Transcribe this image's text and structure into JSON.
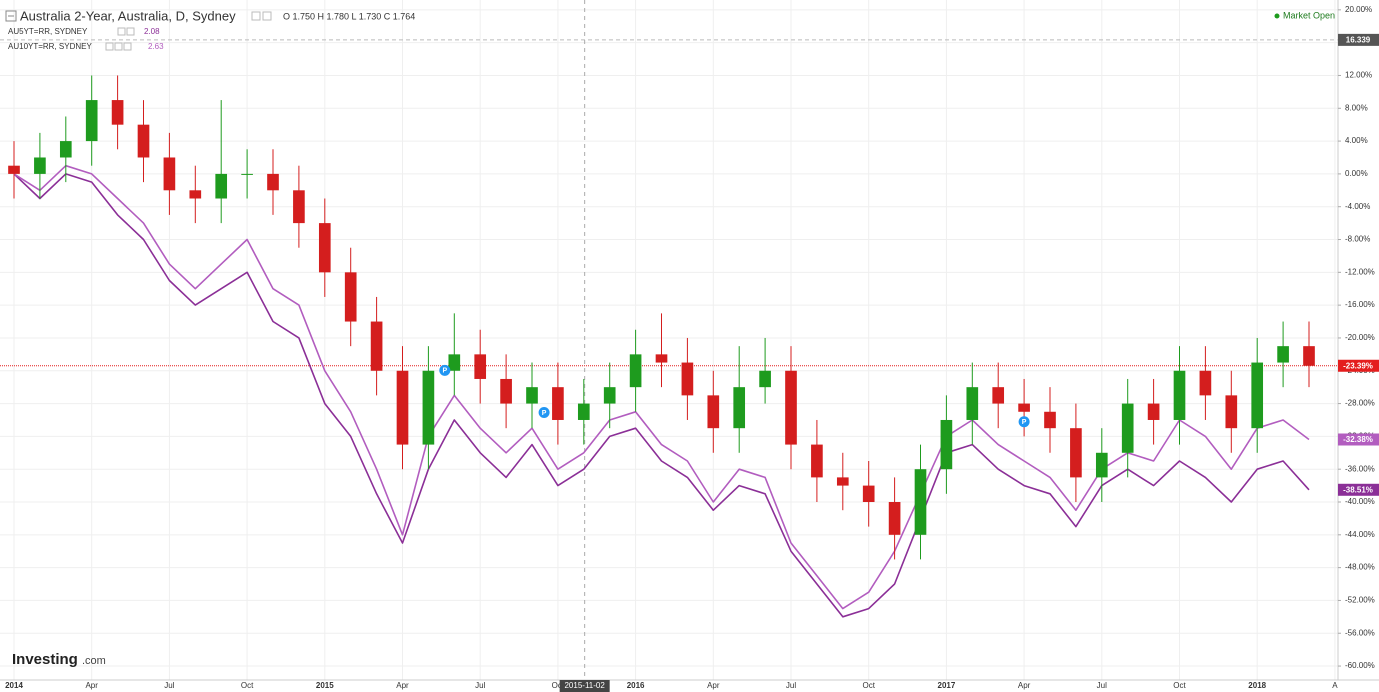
{
  "chart_data": {
    "type": "candlestick",
    "title": "Australia 2-Year, Australia, D, Sydney",
    "legend_ohlc": "O 1.750 H 1.780 L 1.730 C 1.764",
    "status": "Market Open",
    "watermark": [
      "Investing",
      ".com"
    ],
    "x": [
      "2014-01",
      "2014-02",
      "2014-03",
      "2014-04",
      "2014-05",
      "2014-06",
      "2014-07",
      "2014-08",
      "2014-09",
      "2014-10",
      "2014-11",
      "2014-12",
      "2015-01",
      "2015-02",
      "2015-03",
      "2015-04",
      "2015-05",
      "2015-06",
      "2015-07",
      "2015-08",
      "2015-09",
      "2015-10",
      "2015-11",
      "2015-12",
      "2016-01",
      "2016-02",
      "2016-03",
      "2016-04",
      "2016-05",
      "2016-06",
      "2016-07",
      "2016-08",
      "2016-09",
      "2016-10",
      "2016-11",
      "2016-12",
      "2017-01",
      "2017-02",
      "2017-03",
      "2017-04",
      "2017-05",
      "2017-06",
      "2017-07",
      "2017-08",
      "2017-09",
      "2017-10",
      "2017-11",
      "2017-12",
      "2018-01",
      "2018-02",
      "2018-03"
    ],
    "open": [
      1,
      0,
      2,
      4,
      9,
      6,
      2,
      -2,
      -3,
      0,
      0,
      -2,
      -6,
      -12,
      -18,
      -24,
      -33,
      -24,
      -22,
      -25,
      -28,
      -26,
      -30,
      -28,
      -26,
      -22,
      -23,
      -27,
      -31,
      -26,
      -24,
      -33,
      -37,
      -38,
      -40,
      -44,
      -36,
      -30,
      -26,
      -28,
      -29,
      -31,
      -37,
      -34,
      -28,
      -30,
      -24,
      -27,
      -31,
      -23,
      -21
    ],
    "high": [
      4,
      5,
      7,
      12,
      12,
      9,
      5,
      1,
      9,
      3,
      3,
      1,
      -3,
      -9,
      -15,
      -21,
      -21,
      -17,
      -19,
      -22,
      -23,
      -23,
      -25,
      -23,
      -19,
      -17,
      -20,
      -24,
      -21,
      -20,
      -21,
      -30,
      -34,
      -35,
      -37,
      -33,
      -27,
      -23,
      -23,
      -25,
      -26,
      -28,
      -31,
      -25,
      -25,
      -21,
      -21,
      -24,
      -20,
      -18,
      -18
    ],
    "low": [
      -3,
      -3,
      -1,
      1,
      3,
      -1,
      -5,
      -6,
      -6,
      -3,
      -5,
      -9,
      -15,
      -21,
      -27,
      -36,
      -36,
      -27,
      -28,
      -31,
      -31,
      -33,
      -33,
      -31,
      -29,
      -26,
      -30,
      -34,
      -34,
      -28,
      -36,
      -40,
      -41,
      -43,
      -47,
      -47,
      -39,
      -33,
      -31,
      -32,
      -34,
      -40,
      -40,
      -37,
      -33,
      -33,
      -30,
      -34,
      -34,
      -26,
      -26
    ],
    "close": [
      0,
      2,
      4,
      9,
      6,
      2,
      -2,
      -3,
      0,
      0,
      -2,
      -6,
      -12,
      -18,
      -24,
      -33,
      -24,
      -22,
      -25,
      -28,
      -26,
      -30,
      -28,
      -26,
      -22,
      -23,
      -27,
      -31,
      -26,
      -24,
      -33,
      -37,
      -38,
      -40,
      -44,
      -36,
      -30,
      -26,
      -28,
      -29,
      -31,
      -37,
      -34,
      -28,
      -30,
      -24,
      -27,
      -31,
      -23,
      -21,
      -23.39
    ],
    "up_color": "#1e9b1e",
    "down_color": "#d41e1e",
    "current": {
      "value": -23.39,
      "label": "-23.39%",
      "color": "#e41d1d"
    },
    "price_line": {
      "value": 16.339,
      "color": "#555555"
    },
    "series": [
      {
        "name": "AU5YT=RR, SYDNEY",
        "last_quote": "2.08",
        "color": "#8b2f97",
        "values": [
          0,
          -3,
          0,
          -1,
          -5,
          -8,
          -13,
          -16,
          -14,
          -12,
          -18,
          -20,
          -28,
          -32,
          -39,
          -45,
          -36,
          -30,
          -34,
          -37,
          -33,
          -38,
          -36,
          -32,
          -31,
          -35,
          -37,
          -41,
          -38,
          -39,
          -46,
          -50,
          -54,
          -53,
          -50,
          -42,
          -34,
          -33,
          -36,
          -38,
          -39,
          -43,
          -38,
          -36,
          -38,
          -35,
          -37,
          -40,
          -36,
          -35,
          -38.51
        ],
        "last_value": {
          "value": -38.51,
          "label": "-38.51%"
        }
      },
      {
        "name": "AU10YT=RR, SYDNEY",
        "last_quote": "2.63",
        "color": "#b25dbf",
        "values": [
          0,
          -2,
          1,
          0,
          -3,
          -6,
          -11,
          -14,
          -11,
          -8,
          -14,
          -16,
          -24,
          -29,
          -36,
          -44,
          -32,
          -27,
          -31,
          -34,
          -31,
          -36,
          -34,
          -30,
          -29,
          -33,
          -35,
          -40,
          -36,
          -37,
          -45,
          -49,
          -53,
          -51,
          -46,
          -39,
          -32,
          -30,
          -33,
          -35,
          -37,
          -41,
          -36,
          -34,
          -35,
          -30,
          -32,
          -36,
          -31,
          -30,
          -32.38
        ],
        "last_value": {
          "value": -32.38,
          "label": "-32.38%"
        }
      }
    ],
    "markers": [
      {
        "x": "2015-05-20",
        "label": "P"
      },
      {
        "x": "2015-09-15",
        "label": "P"
      },
      {
        "x": "2017-04-01",
        "label": "P"
      }
    ],
    "crosshair": "2015-11-02",
    "ylim": [
      -61.7,
      21.2
    ],
    "yticks": [
      {
        "value": 20,
        "label": "20.00%"
      },
      {
        "value": 16,
        "label": "16.00%"
      },
      {
        "value": 12,
        "label": "12.00%"
      },
      {
        "value": 8,
        "label": "8.00%"
      },
      {
        "value": 4,
        "label": "4.00%"
      },
      {
        "value": 0,
        "label": "0.00%"
      },
      {
        "value": -4,
        "label": "-4.00%"
      },
      {
        "value": -8,
        "label": "-8.00%"
      },
      {
        "value": -12,
        "label": "-12.00%"
      },
      {
        "value": -16,
        "label": "-16.00%"
      },
      {
        "value": -20,
        "label": "-20.00%"
      },
      {
        "value": -24,
        "label": "-24.00%"
      },
      {
        "value": -28,
        "label": "-28.00%"
      },
      {
        "value": -32,
        "label": "-32.00%"
      },
      {
        "value": -36,
        "label": "-36.00%"
      },
      {
        "value": -40,
        "label": "-40.00%"
      },
      {
        "value": -44,
        "label": "-44.00%"
      },
      {
        "value": -48,
        "label": "-48.00%"
      },
      {
        "value": -52,
        "label": "-52.00%"
      },
      {
        "value": -56,
        "label": "-56.00%"
      },
      {
        "value": -60,
        "label": "-60.00%"
      }
    ],
    "xticks": [
      {
        "value": "2014-01",
        "label": "2014"
      },
      {
        "value": "2014-04",
        "label": "Apr"
      },
      {
        "value": "2014-07",
        "label": "Jul"
      },
      {
        "value": "2014-10",
        "label": "Oct"
      },
      {
        "value": "2015-01",
        "label": "2015"
      },
      {
        "value": "2015-04",
        "label": "Apr"
      },
      {
        "value": "2015-07",
        "label": "Jul"
      },
      {
        "value": "2015-10",
        "label": "Oct"
      },
      {
        "value": "2016-01",
        "label": "2016"
      },
      {
        "value": "2016-04",
        "label": "Apr"
      },
      {
        "value": "2016-07",
        "label": "Jul"
      },
      {
        "value": "2016-10",
        "label": "Oct"
      },
      {
        "value": "2017-01",
        "label": "2017"
      },
      {
        "value": "2017-04",
        "label": "Apr"
      },
      {
        "value": "2017-07",
        "label": "Jul"
      },
      {
        "value": "2017-10",
        "label": "Oct"
      },
      {
        "value": "2018-01",
        "label": "2018"
      },
      {
        "value": "2018-04",
        "label": "A"
      }
    ],
    "grid": true
  }
}
